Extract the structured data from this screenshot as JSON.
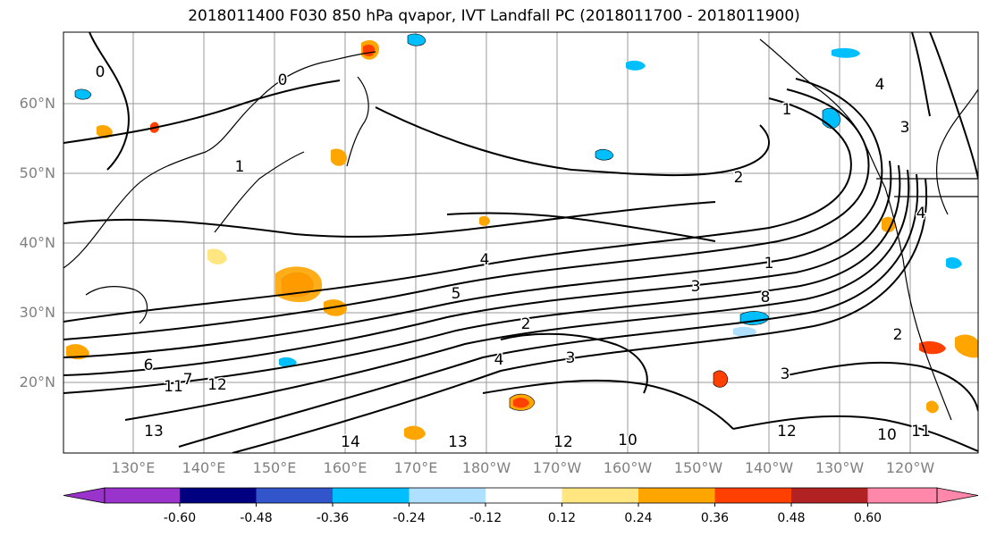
{
  "title": "2018011400 F030 850 hPa qvapor, IVT Landfall PC (2018011700 - 2018011900)",
  "latitude_labels": [
    "60°N",
    "50°N",
    "40°N",
    "30°N",
    "20°N"
  ],
  "longitude_labels": [
    "130°E",
    "140°E",
    "150°E",
    "160°E",
    "170°E",
    "180°W",
    "170°W",
    "160°W",
    "150°W",
    "140°W",
    "130°W",
    "120°W"
  ],
  "contour_labels": [
    "0",
    "0",
    "1",
    "1",
    "2",
    "2",
    "3",
    "3",
    "3",
    "4",
    "4",
    "4",
    "4",
    "5",
    "6",
    "7",
    "8",
    "10",
    "10",
    "11",
    "11",
    "12",
    "12",
    "12",
    "13",
    "13",
    "14",
    "2",
    "3",
    "1"
  ],
  "colorbar": {
    "ticks": [
      "-0.60",
      "-0.48",
      "-0.36",
      "-0.24",
      "-0.12",
      "0.12",
      "0.24",
      "0.36",
      "0.48",
      "0.60"
    ],
    "colors": [
      "#9933cc",
      "#000080",
      "#3355cc",
      "#00bfff",
      "#b0e0ff",
      "#ffffff",
      "#ffe680",
      "#ffa500",
      "#ff4000",
      "#b22222",
      "#ff88aa"
    ]
  }
}
